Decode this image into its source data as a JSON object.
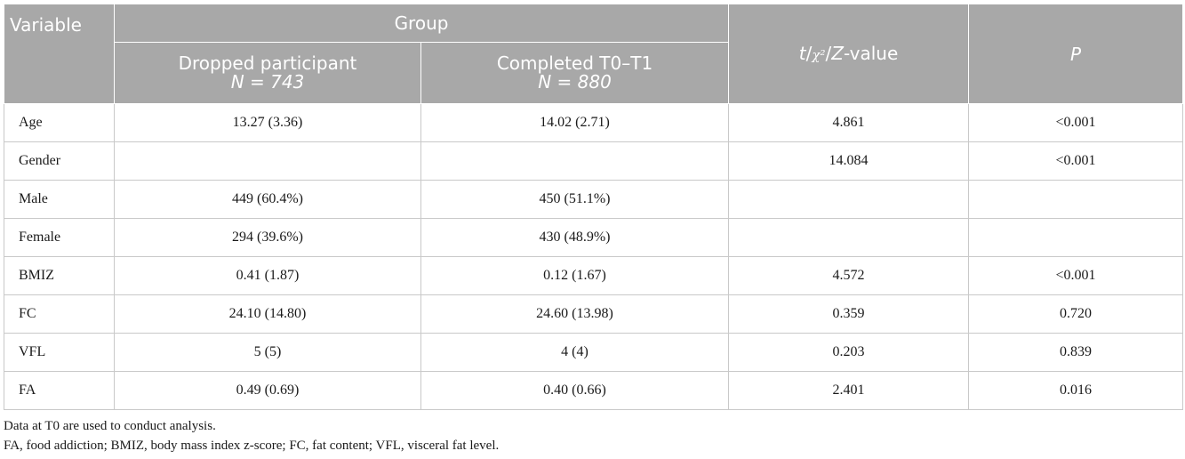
{
  "header": {
    "variable": "Variable",
    "group": "Group",
    "dropped_label": "Dropped participant",
    "dropped_n": "N = 743",
    "completed_label": "Completed T0–T1",
    "completed_n": "N = 880",
    "stat_t": "t",
    "stat_chi": "χ²",
    "stat_z": "Z",
    "stat_suffix": "-value",
    "p": "P"
  },
  "rows": [
    {
      "variable": "Age",
      "dropped": "13.27 (3.36)",
      "completed": "14.02 (2.71)",
      "stat": "4.861",
      "p": "<0.001"
    },
    {
      "variable": "Gender",
      "dropped": "",
      "completed": "",
      "stat": "14.084",
      "p": "<0.001"
    },
    {
      "variable": "Male",
      "dropped": "449 (60.4%)",
      "completed": "450 (51.1%)",
      "stat": "",
      "p": ""
    },
    {
      "variable": "Female",
      "dropped": "294 (39.6%)",
      "completed": "430 (48.9%)",
      "stat": "",
      "p": ""
    },
    {
      "variable": "BMIZ",
      "dropped": "0.41 (1.87)",
      "completed": "0.12 (1.67)",
      "stat": "4.572",
      "p": "<0.001"
    },
    {
      "variable": "FC",
      "dropped": "24.10 (14.80)",
      "completed": "24.60 (13.98)",
      "stat": "0.359",
      "p": "0.720"
    },
    {
      "variable": "VFL",
      "dropped": "5 (5)",
      "completed": "4 (4)",
      "stat": "0.203",
      "p": "0.839"
    },
    {
      "variable": "FA",
      "dropped": "0.49 (0.69)",
      "completed": "0.40 (0.66)",
      "stat": "2.401",
      "p": "0.016"
    }
  ],
  "footnotes": [
    "Data at T0 are used to conduct analysis.",
    "FA, food addiction; BMIZ, body mass index z-score; FC, fat content; VFL, visceral fat level."
  ],
  "colors": {
    "header_bg": "#a8a8a8",
    "header_text": "#ffffff",
    "grid_line": "#c9c9c9"
  }
}
